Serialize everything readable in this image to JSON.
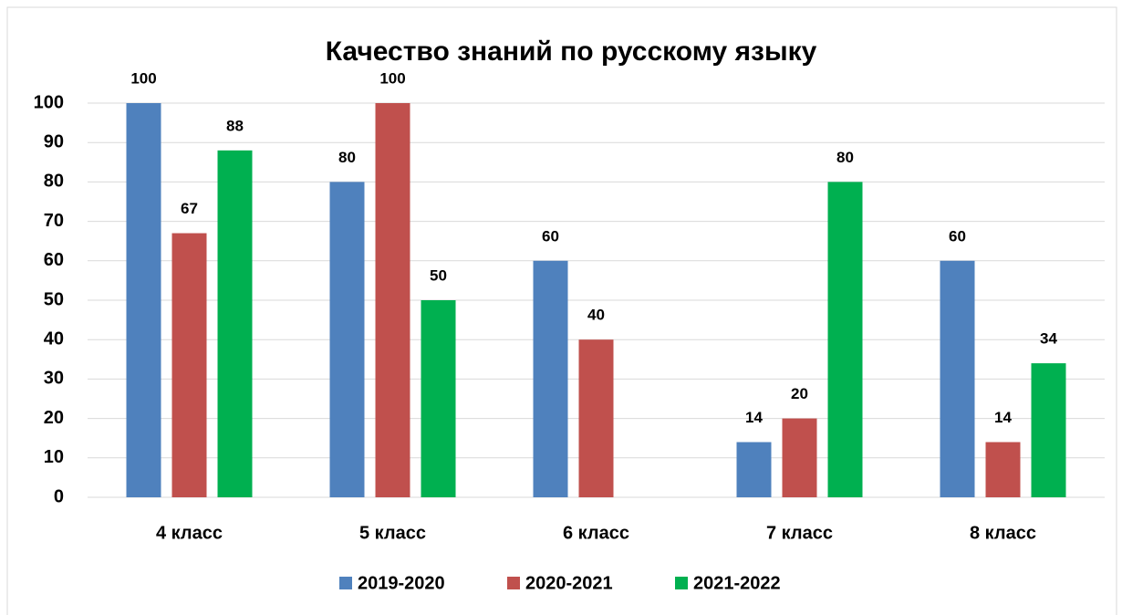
{
  "chart_data": {
    "type": "bar",
    "title": "Качество знаний по русскому языку",
    "categories": [
      "4 класс",
      "5 класс",
      "6 класс",
      "7 класс",
      "8 класс"
    ],
    "series": [
      {
        "name": "2019-2020",
        "color": "#4f81bd",
        "values": [
          100,
          80,
          60,
          14,
          60
        ]
      },
      {
        "name": "2020-2021",
        "color": "#c0504d",
        "values": [
          67,
          100,
          40,
          20,
          14
        ]
      },
      {
        "name": "2021-2022",
        "color": "#00b050",
        "values": [
          88,
          50,
          null,
          80,
          34
        ]
      }
    ],
    "ylim": [
      0,
      100
    ],
    "yticks": [
      0,
      10,
      20,
      30,
      40,
      50,
      60,
      70,
      80,
      90,
      100
    ],
    "grid": true,
    "legend": "bottom"
  }
}
